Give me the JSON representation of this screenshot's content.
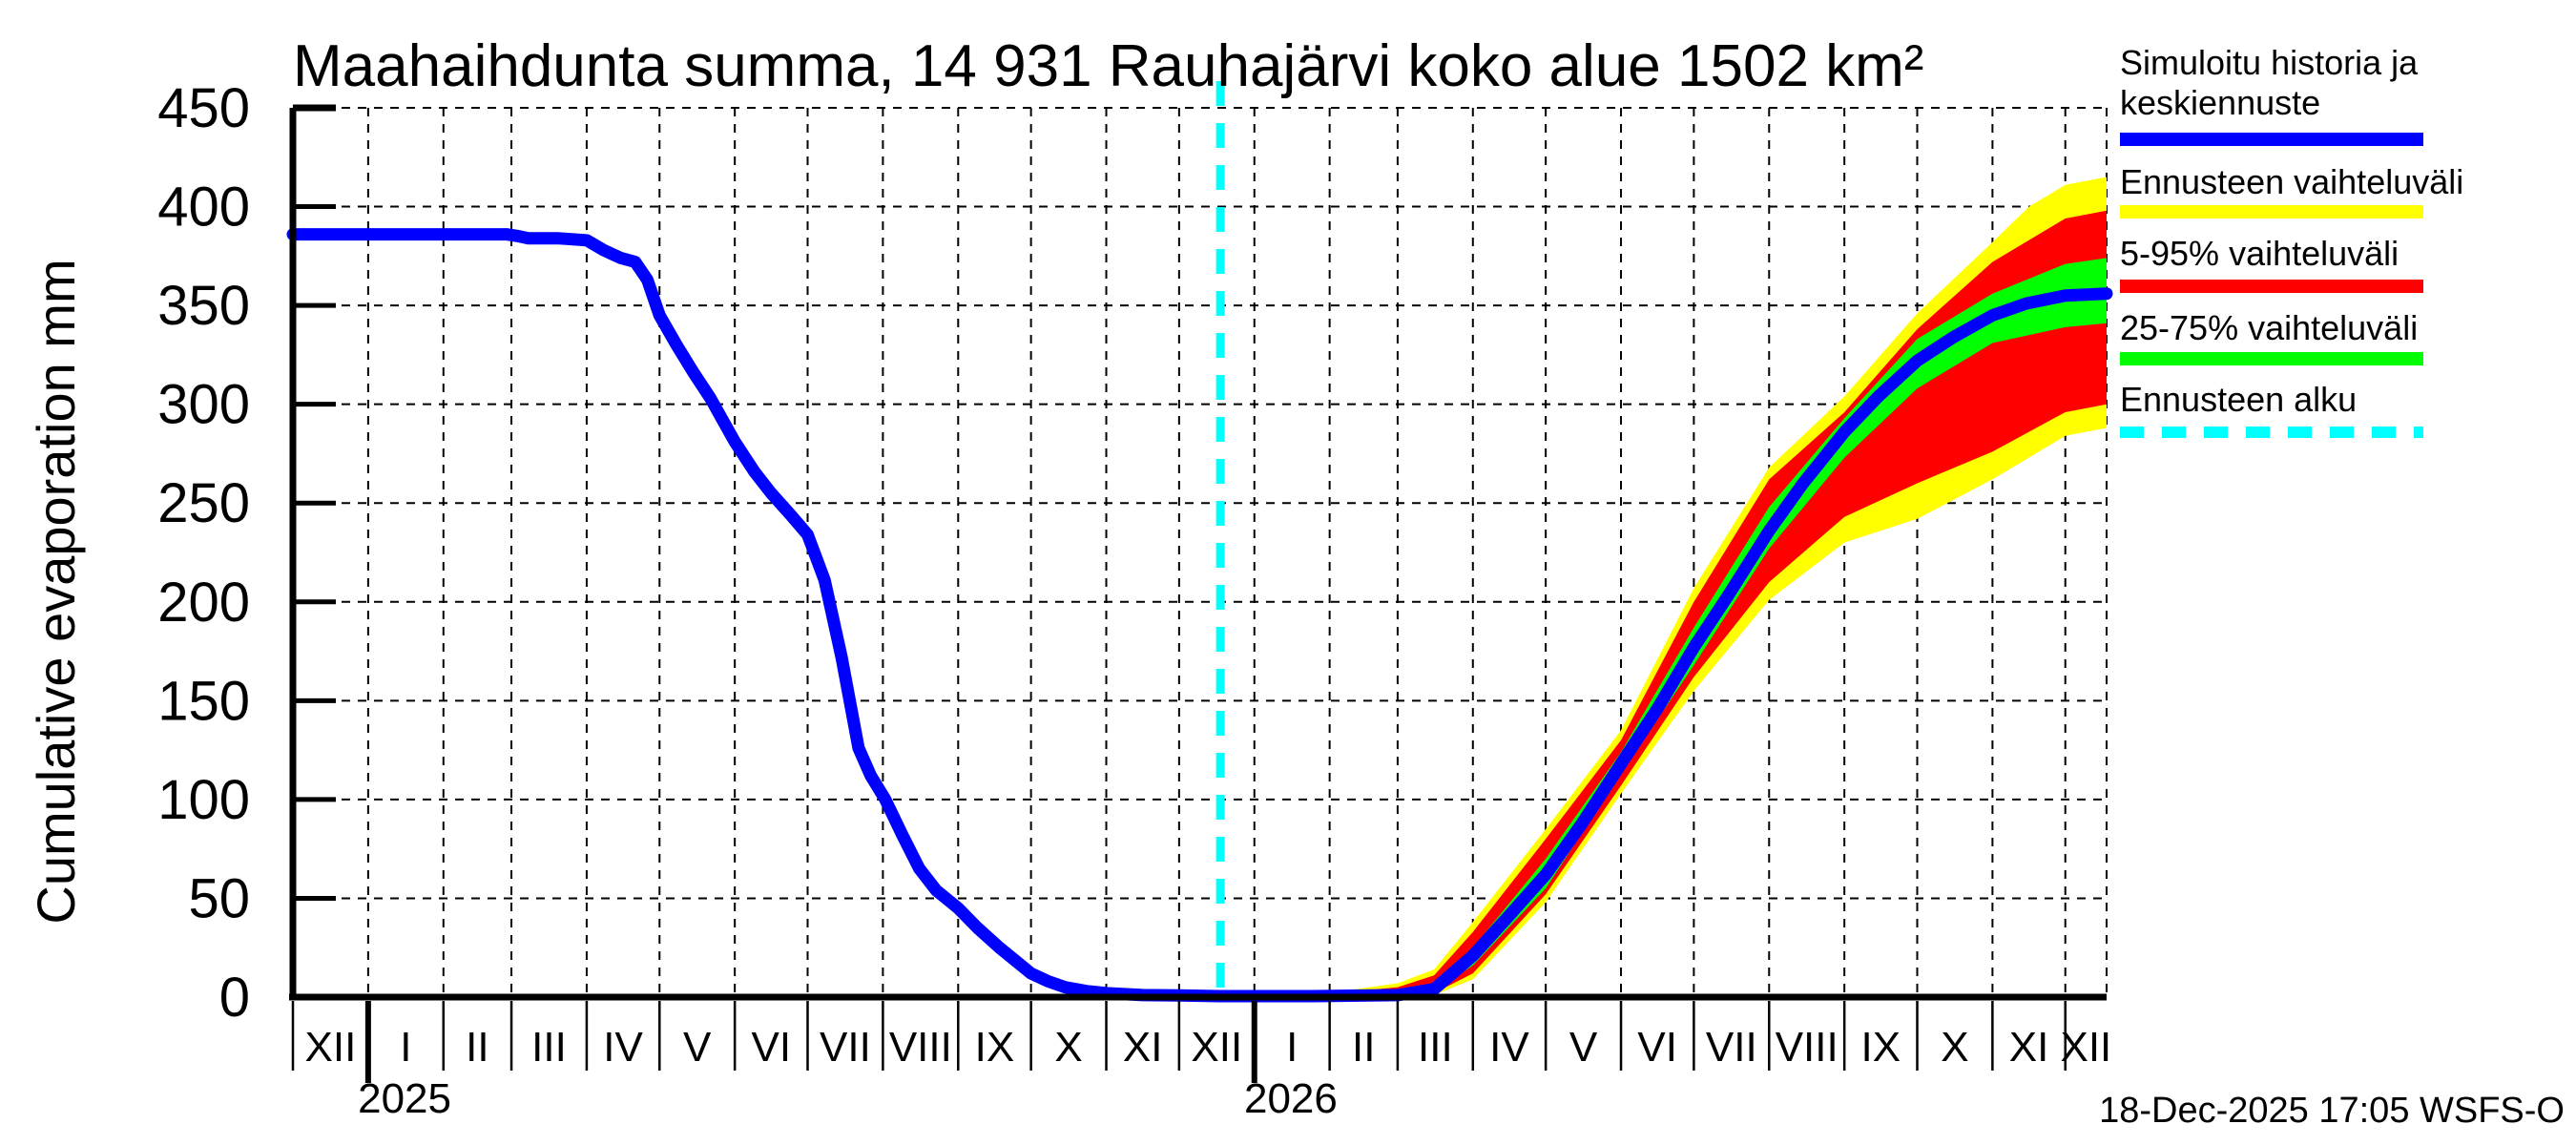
{
  "title": "Maahaihdunta summa, 14 931 Rauhajärvi koko alue 1502 km²",
  "caption": "18-Dec-2025 17:05 WSFS-O",
  "y_axis": {
    "label": "Cumulative evaporation  mm"
  },
  "legend": {
    "items": [
      {
        "label": "Simuloitu historia ja keskiennuste",
        "label_lines": [
          "Simuloitu historia ja",
          "keskiennuste"
        ],
        "color": "#0000ff",
        "style": "solid"
      },
      {
        "label": "Ennusteen vaihteluväli",
        "label_lines": [
          "Ennusteen vaihteluväli"
        ],
        "color": "#ffff00",
        "style": "solid"
      },
      {
        "label": "5-95% vaihteluväli",
        "label_lines": [
          "5-95% vaihteluväli"
        ],
        "color": "#ff0000",
        "style": "solid"
      },
      {
        "label": "25-75% vaihteluväli",
        "label_lines": [
          "25-75% vaihteluväli"
        ],
        "color": "#00ff00",
        "style": "solid"
      },
      {
        "label": "Ennusteen alku",
        "label_lines": [
          "Ennusteen alku"
        ],
        "color": "#00ffff",
        "style": "dashed"
      }
    ]
  },
  "colors": {
    "history_and_median": "#0000ff",
    "forecast_range": "#ffff00",
    "range_5_95": "#ff0000",
    "range_25_75": "#00ff00",
    "forecast_start": "#00ffff",
    "grid": "#000000",
    "background": "#ffffff"
  },
  "chart_data": {
    "type": "line",
    "title": "Maahaihdunta summa, 14 931 Rauhajärvi koko alue 1502 km²",
    "ylabel": "Cumulative evaporation  mm",
    "ylim": [
      0,
      450
    ],
    "y_ticks": [
      0,
      50,
      100,
      150,
      200,
      250,
      300,
      350,
      400,
      450
    ],
    "x_unit": "days since 2024-12-01",
    "x_range": [
      0,
      747
    ],
    "grid": "dashed",
    "legend_position": "outside-right-top",
    "month_boundaries_days": [
      0,
      31,
      62,
      90,
      121,
      151,
      182,
      212,
      243,
      274,
      304,
      335,
      365,
      396,
      427,
      455,
      486,
      516,
      547,
      577,
      608,
      639,
      669,
      700,
      730
    ],
    "month_labels": [
      "XII",
      "I",
      "II",
      "III",
      "IV",
      "V",
      "VI",
      "VII",
      "VIII",
      "IX",
      "X",
      "XI",
      "XII",
      "I",
      "II",
      "III",
      "IV",
      "V",
      "VI",
      "VII",
      "VIII",
      "IX",
      "X",
      "XI",
      "XII"
    ],
    "years": [
      {
        "label": "2025",
        "center_day": 46
      },
      {
        "label": "2026",
        "center_day": 411
      }
    ],
    "year_boundary_days": [
      31,
      396
    ],
    "forecast_start_day": 382,
    "series": [
      {
        "name": "history_median",
        "kind": "line",
        "color": "#0000ff",
        "width": 13,
        "points": [
          [
            0,
            386
          ],
          [
            88,
            386
          ],
          [
            93,
            385
          ],
          [
            97,
            384
          ],
          [
            109,
            384
          ],
          [
            121,
            383
          ],
          [
            128,
            378
          ],
          [
            135,
            374
          ],
          [
            141,
            372
          ],
          [
            146,
            363
          ],
          [
            151,
            345
          ],
          [
            158,
            330
          ],
          [
            165,
            316
          ],
          [
            172,
            303
          ],
          [
            182,
            281
          ],
          [
            190,
            266
          ],
          [
            197,
            255
          ],
          [
            205,
            244
          ],
          [
            212,
            234
          ],
          [
            219,
            211
          ],
          [
            226,
            172
          ],
          [
            233,
            126
          ],
          [
            238,
            112
          ],
          [
            244,
            100
          ],
          [
            251,
            82
          ],
          [
            258,
            65
          ],
          [
            265,
            54
          ],
          [
            270,
            49
          ],
          [
            274,
            45
          ],
          [
            282,
            35
          ],
          [
            291,
            25
          ],
          [
            298,
            18
          ],
          [
            304,
            12
          ],
          [
            311,
            8
          ],
          [
            318,
            5
          ],
          [
            327,
            3
          ],
          [
            335,
            2
          ],
          [
            350,
            1
          ],
          [
            365,
            0.8
          ],
          [
            382,
            0.5
          ]
        ]
      },
      {
        "name": "forecast_range_band",
        "kind": "band",
        "color": "#ffff00",
        "top": [
          [
            382,
            0.5
          ],
          [
            420,
            1
          ],
          [
            455,
            7
          ],
          [
            470,
            14
          ],
          [
            486,
            38
          ],
          [
            516,
            85
          ],
          [
            547,
            135
          ],
          [
            577,
            207
          ],
          [
            608,
            268
          ],
          [
            639,
            304
          ],
          [
            669,
            346
          ],
          [
            700,
            382
          ],
          [
            715,
            400
          ],
          [
            730,
            411
          ],
          [
            747,
            415
          ]
        ],
        "bottom": [
          [
            382,
            0
          ],
          [
            420,
            0
          ],
          [
            455,
            0
          ],
          [
            470,
            1
          ],
          [
            486,
            9
          ],
          [
            516,
            48
          ],
          [
            547,
            103
          ],
          [
            577,
            155
          ],
          [
            608,
            201
          ],
          [
            639,
            230
          ],
          [
            669,
            242
          ],
          [
            700,
            262
          ],
          [
            730,
            284
          ],
          [
            747,
            288
          ]
        ]
      },
      {
        "name": "band_5_95",
        "kind": "band",
        "color": "#ff0000",
        "top": [
          [
            382,
            0.5
          ],
          [
            420,
            0.8
          ],
          [
            455,
            5
          ],
          [
            470,
            11
          ],
          [
            486,
            33
          ],
          [
            516,
            80
          ],
          [
            547,
            130
          ],
          [
            577,
            200
          ],
          [
            608,
            262
          ],
          [
            639,
            296
          ],
          [
            669,
            338
          ],
          [
            700,
            372
          ],
          [
            730,
            394
          ],
          [
            747,
            398
          ]
        ],
        "bottom": [
          [
            382,
            0
          ],
          [
            420,
            0
          ],
          [
            455,
            0
          ],
          [
            470,
            2
          ],
          [
            486,
            12
          ],
          [
            516,
            52
          ],
          [
            547,
            107
          ],
          [
            577,
            162
          ],
          [
            608,
            210
          ],
          [
            639,
            243
          ],
          [
            669,
            260
          ],
          [
            700,
            276
          ],
          [
            730,
            296
          ],
          [
            747,
            300
          ]
        ]
      },
      {
        "name": "band_25_75",
        "kind": "band",
        "color": "#00ff00",
        "top": [
          [
            382,
            0.5
          ],
          [
            420,
            0.6
          ],
          [
            455,
            2
          ],
          [
            470,
            6
          ],
          [
            486,
            25
          ],
          [
            516,
            70
          ],
          [
            547,
            124
          ],
          [
            577,
            187
          ],
          [
            608,
            248
          ],
          [
            639,
            293
          ],
          [
            669,
            333
          ],
          [
            700,
            356
          ],
          [
            730,
            371
          ],
          [
            747,
            374
          ]
        ],
        "bottom": [
          [
            382,
            0
          ],
          [
            420,
            0.2
          ],
          [
            455,
            0.5
          ],
          [
            470,
            3
          ],
          [
            486,
            16
          ],
          [
            516,
            55
          ],
          [
            547,
            113
          ],
          [
            577,
            168
          ],
          [
            608,
            227
          ],
          [
            639,
            273
          ],
          [
            669,
            308
          ],
          [
            700,
            331
          ],
          [
            730,
            339
          ],
          [
            747,
            341
          ]
        ]
      },
      {
        "name": "forecast_median",
        "kind": "line",
        "color": "#0000ff",
        "width": 13,
        "points": [
          [
            382,
            0.5
          ],
          [
            420,
            0.5
          ],
          [
            455,
            1
          ],
          [
            470,
            4
          ],
          [
            486,
            21
          ],
          [
            500,
            40
          ],
          [
            516,
            62
          ],
          [
            531,
            88
          ],
          [
            547,
            118
          ],
          [
            562,
            146
          ],
          [
            577,
            177
          ],
          [
            591,
            203
          ],
          [
            608,
            236
          ],
          [
            622,
            260
          ],
          [
            639,
            286
          ],
          [
            653,
            304
          ],
          [
            669,
            322
          ],
          [
            684,
            334
          ],
          [
            700,
            345
          ],
          [
            714,
            351
          ],
          [
            730,
            355
          ],
          [
            747,
            356
          ]
        ]
      }
    ]
  }
}
